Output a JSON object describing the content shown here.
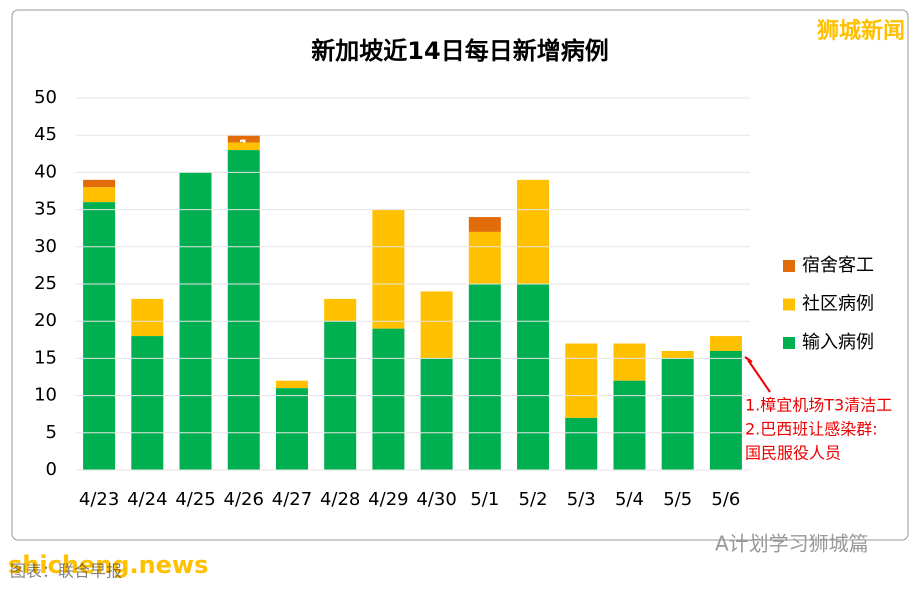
{
  "chart_data": {
    "type": "stacked-bar",
    "title": "新加坡近14日每日新增病例",
    "categories": [
      "4/23",
      "4/24",
      "4/25",
      "4/26",
      "4/27",
      "4/28",
      "4/29",
      "4/30",
      "5/1",
      "5/2",
      "5/3",
      "5/4",
      "5/5",
      "5/6"
    ],
    "series": [
      {
        "name": "输入病例",
        "color": "#00b050",
        "values": [
          36,
          18,
          40,
          43,
          11,
          20,
          19,
          15,
          25,
          25,
          7,
          12,
          15,
          16
        ]
      },
      {
        "name": "社区病例",
        "color": "#ffc000",
        "values": [
          2,
          5,
          null,
          1,
          1,
          3,
          16,
          9,
          7,
          14,
          10,
          5,
          1,
          2
        ]
      },
      {
        "name": "宿舍客工",
        "color": "#e26b0a",
        "values": [
          1,
          null,
          null,
          1,
          null,
          null,
          null,
          null,
          2,
          null,
          null,
          null,
          null,
          null
        ]
      }
    ],
    "ylim": [
      0,
      50
    ],
    "yticks": [
      0,
      5,
      10,
      15,
      20,
      25,
      30,
      35,
      40,
      45,
      50
    ],
    "grid": true,
    "legend": "right",
    "annotations": [
      "1.樟宜机场T3清洁工",
      "2.巴西班让感染群:",
      "国民服役人员"
    ],
    "watermarks": [
      "狮城新闻",
      "A计划学习狮城篇",
      "shicheng.news",
      "图表：联合早报"
    ]
  }
}
